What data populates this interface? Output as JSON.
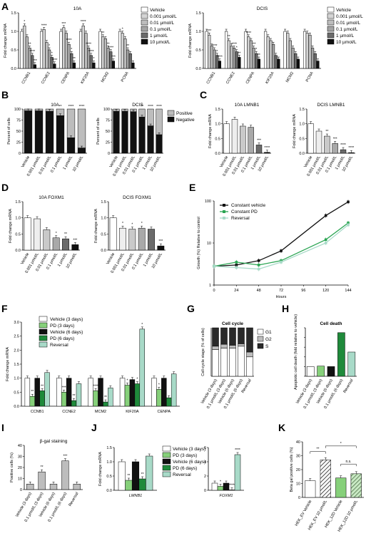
{
  "panels": [
    "A",
    "B",
    "C",
    "D",
    "E",
    "F",
    "G",
    "H",
    "I",
    "J",
    "K"
  ],
  "colors": {
    "white": "#ffffff",
    "lg": "#d4d4d4",
    "mg": "#a3a3a3",
    "dg": "#6b6b6b",
    "bk": "#111111",
    "lgreen": "#86d07a",
    "dgreen": "#1f8a3b",
    "lteal": "#a8dac8",
    "grn2": "#2aa552"
  },
  "chart_data": [
    {
      "id": "A1",
      "type": "bar",
      "title": "10A",
      "ylabel": "Fold change mRNA",
      "ylim": [
        0,
        1.5
      ],
      "yticks": [
        "0.0",
        "0.5",
        "1.0",
        "1.5"
      ],
      "categories": [
        "CCNB1",
        "CCNE2",
        "CENPA",
        "KIF20A",
        "MCM2",
        "PCNA"
      ],
      "series": [
        {
          "name": "Vehicle",
          "values": [
            1,
            1,
            1,
            1,
            1,
            1
          ]
        },
        {
          "name": "0.001 µmol/L",
          "values": [
            1.15,
            1.05,
            1.1,
            1.15,
            0.85,
            0.95
          ]
        },
        {
          "name": "0.01 µmol/L",
          "values": [
            0.85,
            0.7,
            0.95,
            0.95,
            0.8,
            0.8
          ]
        },
        {
          "name": "0.1 µmol/L",
          "values": [
            0.55,
            0.5,
            0.65,
            0.55,
            0.55,
            0.5
          ]
        },
        {
          "name": "1 µmol/L",
          "values": [
            0.35,
            0.3,
            0.4,
            0.35,
            0.45,
            0.4
          ]
        },
        {
          "name": "10 µmol/L",
          "values": [
            0.1,
            0.12,
            0.15,
            0.15,
            0.2,
            0.15
          ]
        }
      ],
      "stars": [
        "*",
        "**",
        "****",
        "***",
        "****",
        "*",
        "*",
        "****",
        "***",
        "****",
        "*",
        "**",
        "****",
        "****",
        "****",
        "*",
        "**",
        "**",
        "****",
        "***",
        "*",
        "**"
      ]
    },
    {
      "id": "A2",
      "type": "bar",
      "title": "DCIS",
      "ylabel": "Fold change mRNA",
      "ylim": [
        0,
        1.5
      ],
      "yticks": [
        "0.0",
        "0.5",
        "1.0",
        "1.5"
      ],
      "categories": [
        "CCNB1",
        "CCNE2",
        "CENPA",
        "KIF20A",
        "MCM2",
        "PCNA"
      ],
      "series": [
        {
          "name": "Vehicle",
          "values": [
            1,
            1,
            1,
            1,
            1,
            1
          ]
        },
        {
          "name": "0.001 µmol/L",
          "values": [
            0.9,
            0.75,
            0.85,
            0.85,
            0.95,
            0.95
          ]
        },
        {
          "name": "0.01 µmol/L",
          "values": [
            0.6,
            0.6,
            0.75,
            0.75,
            0.75,
            0.9
          ]
        },
        {
          "name": "0.1 µmol/L",
          "values": [
            0.5,
            0.55,
            0.55,
            0.65,
            0.55,
            0.55
          ]
        },
        {
          "name": "1 µmol/L",
          "values": [
            0.35,
            0.45,
            0.4,
            0.35,
            0.4,
            0.4
          ]
        },
        {
          "name": "10 µmol/L",
          "values": [
            0.2,
            0.3,
            0.25,
            0.25,
            0.25,
            0.2
          ]
        }
      ],
      "stars": [
        "***",
        "****",
        "*",
        "****",
        "**",
        "****",
        "*",
        "**",
        "****",
        "***",
        "*",
        "**"
      ]
    },
    {
      "id": "B1",
      "type": "bar",
      "title": "10A",
      "ylabel": "Percent of cells",
      "ylim": [
        0,
        100
      ],
      "yticks": [
        "0",
        "25",
        "50",
        "75",
        "100"
      ],
      "categories": [
        "Vehicle",
        "0.001 µmol/L",
        "0.01 µmol/L",
        "0.1 µmol/L",
        "1 µmol/L",
        "10 µmol/L"
      ],
      "series": [
        {
          "name": "Negative",
          "values": [
            96,
            96,
            95,
            85,
            35,
            12
          ]
        },
        {
          "name": "Positive",
          "values": [
            4,
            4,
            5,
            15,
            65,
            88
          ]
        }
      ],
      "stars": [
        "**",
        "****",
        "****"
      ]
    },
    {
      "id": "B2",
      "type": "bar",
      "title": "DCIS",
      "ylabel": "Percent of cells",
      "ylim": [
        0,
        100
      ],
      "yticks": [
        "0",
        "25",
        "50",
        "75",
        "100"
      ],
      "categories": [
        "Vehicle",
        "0.001 µmol/L",
        "0.01 µmol/L",
        "0.1 µmol/L",
        "1 µmol/L",
        "10 µmol/L"
      ],
      "series": [
        {
          "name": "Negative",
          "values": [
            95,
            95,
            94,
            82,
            62,
            42
          ]
        },
        {
          "name": "Positive",
          "values": [
            5,
            5,
            6,
            18,
            38,
            58
          ]
        }
      ],
      "stars": [
        "**",
        "****",
        "****"
      ],
      "legend": [
        "Positive",
        "Negative"
      ]
    },
    {
      "id": "C1",
      "type": "bar",
      "title": "10A LMNB1",
      "ylabel": "Fold change mRNA",
      "ylim": [
        0,
        1.5
      ],
      "yticks": [
        "0.0",
        "0.5",
        "1.0",
        "1.5"
      ],
      "categories": [
        "Vehicle",
        "0.001 µmol/L",
        "0.01 µmol/L",
        "0.1 µmol/L",
        "1 µmol/L",
        "10 µmol/L"
      ],
      "values": [
        1.0,
        1.15,
        0.92,
        0.88,
        0.28,
        0.03
      ],
      "stars": [
        "",
        "",
        "",
        "",
        "***",
        "****"
      ]
    },
    {
      "id": "C2",
      "type": "bar",
      "title": "DCIS LMNB1",
      "ylabel": "Fold change mRNA",
      "ylim": [
        0,
        1.5
      ],
      "yticks": [
        "0.0",
        "0.5",
        "1.0",
        "1.5"
      ],
      "categories": [
        "Vehicle",
        "0.001 µmol/L",
        "0.01 µmol/L",
        "0.1 µmol/L",
        "1 µmol/L",
        "10 µmol/L"
      ],
      "values": [
        1.0,
        0.75,
        0.58,
        0.33,
        0.12,
        0.02
      ],
      "stars": [
        "",
        "",
        "**",
        "***",
        "****",
        "****"
      ]
    },
    {
      "id": "D1",
      "type": "bar",
      "title": "10A FOXM1",
      "ylabel": "Fold change mRNA",
      "ylim": [
        0,
        1.5
      ],
      "yticks": [
        "0.0",
        "0.5",
        "1.0",
        "1.5"
      ],
      "categories": [
        "Vehicle",
        "0.001 µmol/L",
        "0.01 µmol/L",
        "0.1 µmol/L",
        "1 µmol/L",
        "10 µmol/L"
      ],
      "values": [
        1.0,
        0.97,
        0.63,
        0.38,
        0.35,
        0.17
      ],
      "stars": [
        "",
        "",
        "",
        "*",
        "**",
        "***"
      ]
    },
    {
      "id": "D2",
      "type": "bar",
      "title": "DCIS FOXM1",
      "ylabel": "Fold change mRNA",
      "ylim": [
        0,
        1.5
      ],
      "yticks": [
        "0.0",
        "0.5",
        "1.0",
        "1.5"
      ],
      "categories": [
        "Vehicle",
        "0.001 µmol/L",
        "0.01 µmol/L",
        "0.1 µmol/L",
        "1 µmol/L",
        "10 µmol/L"
      ],
      "values": [
        1.0,
        0.68,
        0.65,
        0.68,
        0.65,
        0.13
      ],
      "stars": [
        "",
        "*",
        "*",
        "*",
        "",
        "***"
      ]
    },
    {
      "id": "E",
      "type": "line",
      "xlabel": "Hours",
      "ylabel": "Growth (%) Relative to control",
      "log_y": true,
      "ylim": [
        1,
        100
      ],
      "yticks": [
        "1",
        "10",
        "100"
      ],
      "xticks": [
        "0",
        "24",
        "48",
        "72",
        "96",
        "120",
        "144"
      ],
      "x": [
        0,
        24,
        48,
        72,
        120,
        144
      ],
      "series": [
        {
          "name": "Constant vehicle",
          "values": [
            2.8,
            3.0,
            3.8,
            6.5,
            45,
            95
          ]
        },
        {
          "name": "Constant PD",
          "values": [
            2.8,
            3.5,
            3.0,
            3.8,
            12,
            30
          ]
        },
        {
          "name": "Reversal",
          "values": [
            2.8,
            2.6,
            2.4,
            3.5,
            10,
            27
          ]
        }
      ]
    },
    {
      "id": "F",
      "type": "bar",
      "ylabel": "Fold change mRNA",
      "ylim": [
        0,
        3.0
      ],
      "yticks": [
        "0.0",
        "0.5",
        "1.0",
        "1.5",
        "2.0",
        "2.5",
        "3.0"
      ],
      "categories": [
        "CCNB1",
        "CCNE2",
        "MCM2",
        "KIF20A",
        "CENPA"
      ],
      "series": [
        {
          "name": "Vehicle (3 days)",
          "values": [
            1,
            1,
            1,
            1,
            1
          ]
        },
        {
          "name": "PD (3 days)",
          "values": [
            0.35,
            0.5,
            0.55,
            0.75,
            0.6
          ]
        },
        {
          "name": "Vehicle (6 days)",
          "values": [
            1,
            1,
            1,
            0.95,
            1
          ]
        },
        {
          "name": "PD (6 days)",
          "values": [
            0.55,
            0.2,
            0.15,
            0.8,
            0.3
          ]
        },
        {
          "name": "Reversal",
          "values": [
            1.2,
            0.8,
            0.65,
            2.75,
            1.15
          ]
        }
      ],
      "stars": [
        "**",
        "**",
        "***",
        "**",
        "****",
        "**",
        "*",
        "*",
        "*"
      ]
    },
    {
      "id": "G",
      "type": "bar",
      "title": "Cell cycle",
      "ylabel": "Cell-cycle stage (% of cells)",
      "categories": [
        "Vehicle (3 days)",
        "0.1 µmol/L (3 days)",
        "Vehicle (6 days)",
        "0.1 µmol/L (6 days)",
        "Reversal"
      ],
      "series": [
        {
          "name": "G1",
          "values": [
            55,
            58,
            58,
            62,
            40
          ]
        },
        {
          "name": "G2",
          "values": [
            7,
            8,
            6,
            5,
            10
          ]
        },
        {
          "name": "S",
          "values": [
            38,
            34,
            36,
            33,
            50
          ]
        }
      ],
      "legend": [
        "G1",
        "G2",
        "S"
      ]
    },
    {
      "id": "H",
      "type": "bar",
      "title": "Cell death",
      "ylabel": "Apoptotic cell death (fold relative to vehicle)",
      "ylim": [
        0,
        5
      ],
      "yticks": [
        "0",
        "1",
        "2",
        "3",
        "4",
        "5"
      ],
      "categories": [
        "Vehicle (3 days)",
        "0.1 µmol/L (3 days)",
        "Vehicle (6 days)",
        "0.1 µmol/L (6 days)",
        "Reversal"
      ],
      "values": [
        1.0,
        1.05,
        1.0,
        4.5,
        2.5
      ]
    },
    {
      "id": "I",
      "type": "bar",
      "title": "β-gal staining",
      "ylabel": "Positive cells (%)",
      "ylim": [
        0,
        40
      ],
      "yticks": [
        "0",
        "10",
        "20",
        "30",
        "40"
      ],
      "categories": [
        "Vehicle (3 days)",
        "0.1 µmol/L (3 days)",
        "Vehicle (6 days)",
        "0.1 µmol/L (6 days)",
        "Reversal"
      ],
      "values": [
        5,
        16,
        5,
        26,
        5
      ],
      "stars": [
        "",
        "**",
        "",
        "***",
        ""
      ]
    },
    {
      "id": "J",
      "type": "bar",
      "ylabel": "Fold change mRNA",
      "ylim": [
        0,
        1.5
      ],
      "yticks": [
        "0.0",
        "0.5",
        "1.0",
        "1.5"
      ],
      "categories": [
        "LMNB1"
      ],
      "series": [
        {
          "name": "Vehicle (3 days)",
          "values": [
            1.0
          ]
        },
        {
          "name": "PD (3 days)",
          "values": [
            0.35
          ]
        },
        {
          "name": "Vehicle (6 days)",
          "values": [
            1.0
          ]
        },
        {
          "name": "PD (6 days)",
          "values": [
            0.4
          ]
        },
        {
          "name": "Reversal",
          "values": [
            1.2
          ]
        }
      ],
      "stars": [
        "",
        "**",
        "",
        "**",
        ""
      ]
    },
    {
      "id": "J2",
      "type": "bar",
      "ylim": [
        0,
        6
      ],
      "yticks": [
        "0",
        "2",
        "4",
        "6"
      ],
      "categories": [
        "FOXM1"
      ],
      "series": [
        {
          "name": "Vehicle (3 days)",
          "values": [
            1.0
          ]
        },
        {
          "name": "PD (3 days)",
          "values": [
            0.55
          ]
        },
        {
          "name": "Vehicle (6 days)",
          "values": [
            1.0
          ]
        },
        {
          "name": "PD (6 days)",
          "values": [
            0.05
          ]
        },
        {
          "name": "Reversal",
          "values": [
            5.0
          ]
        }
      ],
      "stars": [
        "",
        "*",
        "",
        "****",
        "****"
      ]
    },
    {
      "id": "K",
      "type": "bar",
      "ylabel": "Beta gal positive cells (%)",
      "ylim": [
        0,
        40
      ],
      "yticks": [
        "0",
        "10",
        "20",
        "30",
        "40"
      ],
      "categories": [
        "HEK_EV Vehicle",
        "HEK_EV 10 µmol/L",
        "HEK_12D Vehicle",
        "HEK_12D 10 µmol/L"
      ],
      "values": [
        12,
        27,
        14,
        17
      ],
      "stars": [
        "**",
        "*",
        "n.s."
      ]
    }
  ]
}
